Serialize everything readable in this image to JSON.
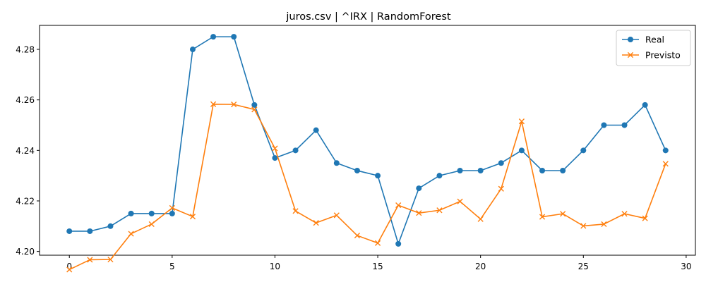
{
  "chart_data": {
    "type": "line",
    "title": "juros.csv | ^IRX | RandomForest",
    "xlabel": "",
    "ylabel": "",
    "xlim": [
      -1.45,
      30.45
    ],
    "ylim": [
      4.1985,
      4.2895
    ],
    "xticks": [
      0,
      5,
      10,
      15,
      20,
      25,
      30
    ],
    "yticks": [
      4.2,
      4.22,
      4.24,
      4.26,
      4.28
    ],
    "ytick_labels": [
      "4.20",
      "4.22",
      "4.24",
      "4.26",
      "4.28"
    ],
    "grid": false,
    "legend_position": "top-right",
    "x": [
      0,
      1,
      2,
      3,
      4,
      5,
      6,
      7,
      8,
      9,
      10,
      11,
      12,
      13,
      14,
      15,
      16,
      17,
      18,
      19,
      20,
      21,
      22,
      23,
      24,
      25,
      26,
      27,
      28,
      29
    ],
    "series": [
      {
        "name": "Real",
        "color": "#1f77b4",
        "marker": "circle",
        "values": [
          4.208,
          4.208,
          4.21,
          4.215,
          4.215,
          4.215,
          4.28,
          4.285,
          4.285,
          4.258,
          4.237,
          4.24,
          4.248,
          4.235,
          4.232,
          4.23,
          4.203,
          4.225,
          4.23,
          4.232,
          4.232,
          4.235,
          4.24,
          4.232,
          4.232,
          4.24,
          4.25,
          4.25,
          4.258,
          4.24
        ]
      },
      {
        "name": "Previsto",
        "color": "#ff7f0e",
        "marker": "x",
        "values": [
          4.1928,
          4.1967,
          4.1968,
          4.207,
          4.2108,
          4.2172,
          4.2138,
          4.2583,
          4.2582,
          4.2562,
          4.2408,
          4.216,
          4.2113,
          4.2143,
          4.2063,
          4.2033,
          4.2183,
          4.2152,
          4.2163,
          4.2198,
          4.2128,
          4.2248,
          4.2515,
          4.2137,
          4.2149,
          4.2101,
          4.2108,
          4.2149,
          4.2131,
          4.2347
        ]
      }
    ]
  }
}
